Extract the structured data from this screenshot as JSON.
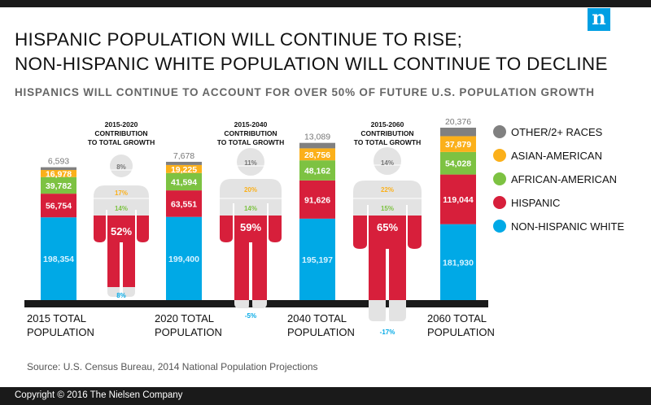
{
  "logo": "n",
  "title_lines": [
    "HISPANIC POPULATION WILL CONTINUE TO RISE;",
    "NON-HISPANIC WHITE POPULATION WILL CONTINUE TO DECLINE"
  ],
  "subtitle": "HISPANICS WILL CONTINUE TO ACCOUNT FOR OVER 50% OF FUTURE U.S. POPULATION GROWTH",
  "source": "Source: U.S. Census Bureau, 2014 National Population Projections",
  "footer": "Copyright © 2016 The Nielsen Company",
  "colors": {
    "other": "#808080",
    "asian": "#fbb01a",
    "african": "#7dc242",
    "hispanic": "#d71f3b",
    "white": "#00a9e6",
    "figure_gray": "#e3e3e3",
    "baseline": "#1a1a1a"
  },
  "chart_data": {
    "type": "bar",
    "stacked": true,
    "unit": "thousands",
    "categories": [
      "2015 TOTAL POPULATION",
      "2020 TOTAL POPULATION",
      "2040 TOTAL POPULATION",
      "2060 TOTAL POPULATION"
    ],
    "series": [
      {
        "name": "NON-HISPANIC WHITE",
        "key": "white",
        "values": [
          198354,
          199400,
          195197,
          181930
        ],
        "labels": [
          "198,354",
          "199,400",
          "195,197",
          "181,930"
        ]
      },
      {
        "name": "HISPANIC",
        "key": "hispanic",
        "values": [
          56754,
          63551,
          91626,
          119044
        ],
        "labels": [
          "56,754",
          "63,551",
          "91,626",
          "119,044"
        ]
      },
      {
        "name": "AFRICAN-AMERICAN",
        "key": "african",
        "values": [
          39782,
          41594,
          48162,
          54028
        ],
        "labels": [
          "39,782",
          "41,594",
          "48,162",
          "54,028"
        ]
      },
      {
        "name": "ASIAN-AMERICAN",
        "key": "asian",
        "values": [
          16978,
          19225,
          28756,
          37879
        ],
        "labels": [
          "16,978",
          "19,225",
          "28,756",
          "37,879"
        ]
      },
      {
        "name": "OTHER/2+ RACES",
        "key": "other",
        "values": [
          6593,
          7678,
          13089,
          20376
        ],
        "labels": [
          "6,593",
          "7,678",
          "13,089",
          "20,376"
        ]
      }
    ],
    "category_labels": [
      [
        "2015 TOTAL",
        "POPULATION"
      ],
      [
        "2020 TOTAL",
        "POPULATION"
      ],
      [
        "2040 TOTAL",
        "POPULATION"
      ],
      [
        "2060 TOTAL",
        "POPULATION"
      ]
    ],
    "legend": [
      "OTHER/2+ RACES",
      "ASIAN-AMERICAN",
      "AFRICAN-AMERICAN",
      "HISPANIC",
      "NON-HISPANIC WHITE"
    ],
    "legend_keys": [
      "other",
      "asian",
      "african",
      "hispanic",
      "white"
    ],
    "legend_position": "right",
    "contributions": [
      {
        "title": [
          "2015-2020",
          "CONTRIBUTION",
          "TO TOTAL GROWTH"
        ],
        "other": "8%",
        "asian": "17%",
        "african": "14%",
        "hispanic": "52%",
        "white": "8%",
        "values": {
          "other": 8,
          "asian": 17,
          "african": 14,
          "hispanic": 52,
          "white": 8
        }
      },
      {
        "title": [
          "2015-2040",
          "CONTRIBUTION",
          "TO TOTAL GROWTH"
        ],
        "other": "11%",
        "asian": "20%",
        "african": "14%",
        "hispanic": "59%",
        "white": "-5%",
        "values": {
          "other": 11,
          "asian": 20,
          "african": 14,
          "hispanic": 59,
          "white": -5
        }
      },
      {
        "title": [
          "2015-2060",
          "CONTRIBUTION",
          "TO TOTAL GROWTH"
        ],
        "other": "14%",
        "asian": "22%",
        "african": "15%",
        "hispanic": "65%",
        "white": "-17%",
        "values": {
          "other": 14,
          "asian": 22,
          "african": 15,
          "hispanic": 65,
          "white": -17
        }
      }
    ]
  }
}
